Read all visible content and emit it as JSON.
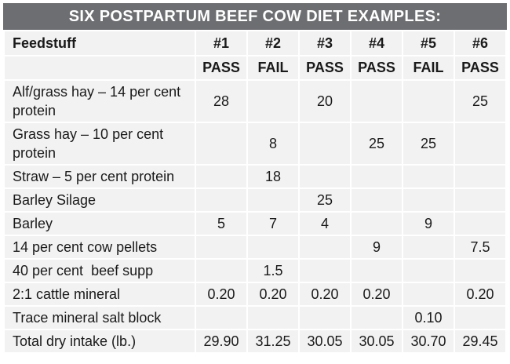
{
  "title": "SIX POSTPARTUM BEEF COW DIET EXAMPLES:",
  "header": {
    "feedstuff_label": "Feedstuff",
    "diets": [
      "#1",
      "#2",
      "#3",
      "#4",
      "#5",
      "#6"
    ],
    "results": [
      "PASS",
      "FAIL",
      "PASS",
      "PASS",
      "FAIL",
      "PASS"
    ]
  },
  "rows": [
    {
      "feedstuff": "Alf/grass hay – 14 per cent protein",
      "values": [
        "28",
        "",
        "20",
        "",
        "",
        "25"
      ]
    },
    {
      "feedstuff": "Grass hay – 10 per cent protein",
      "values": [
        "",
        "8",
        "",
        "25",
        "25",
        ""
      ]
    },
    {
      "feedstuff": "Straw – 5 per cent protein",
      "values": [
        "",
        "18",
        "",
        "",
        "",
        ""
      ]
    },
    {
      "feedstuff": "Barley Silage",
      "values": [
        "",
        "",
        "25",
        "",
        "",
        ""
      ]
    },
    {
      "feedstuff": "Barley",
      "values": [
        "5",
        "7",
        "4",
        "",
        "9",
        ""
      ]
    },
    {
      "feedstuff": "14 per cent cow pellets",
      "values": [
        "",
        "",
        "",
        "9",
        "",
        "7.5"
      ]
    },
    {
      "feedstuff": "40 per cent  beef supp",
      "values": [
        "",
        "1.5",
        "",
        "",
        "",
        ""
      ]
    },
    {
      "feedstuff": "2:1 cattle mineral",
      "values": [
        "0.20",
        "0.20",
        "0.20",
        "0.20",
        "",
        "0.20"
      ]
    },
    {
      "feedstuff": "Trace mineral salt block",
      "values": [
        "",
        "",
        "",
        "",
        "0.10",
        ""
      ]
    },
    {
      "feedstuff": "Total dry intake (lb.)",
      "values": [
        "29.90",
        "31.25",
        "30.05",
        "30.05",
        "30.70",
        "29.45"
      ]
    }
  ],
  "colors": {
    "title_bg": "#6d6e71",
    "cell_bg": "#f2f2f2",
    "grid": "#ffffff"
  }
}
